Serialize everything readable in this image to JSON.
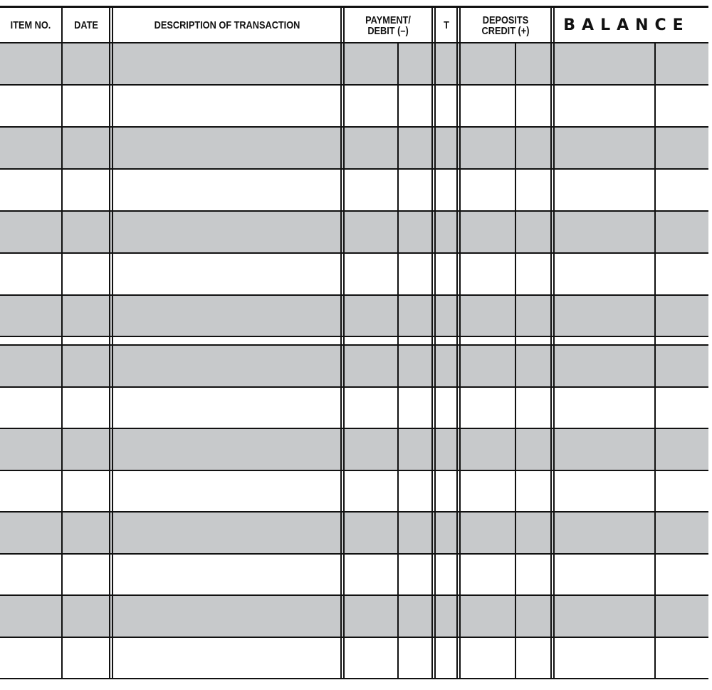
{
  "register": {
    "headers": {
      "item_no": "ITEM NO.",
      "date": "DATE",
      "description": "DESCRIPTION OF TRANSACTION",
      "payment": "PAYMENT/ DEBIT (–)",
      "t": "T",
      "deposits": "DEPOSITS CREDIT (+)",
      "balance": "BALANCE"
    },
    "row_count": 15,
    "colors": {
      "shade": "#c7c9cb",
      "line": "#111111"
    }
  }
}
